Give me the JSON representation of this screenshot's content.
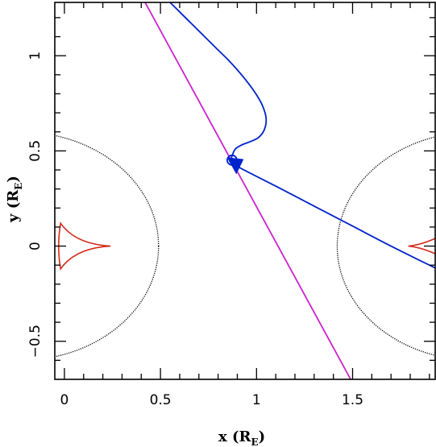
{
  "chart_data": {
    "type": "line",
    "title": "",
    "xlabel": {
      "main": "x (R",
      "sub": "E",
      "close": ")"
    },
    "ylabel": {
      "main": "y (R",
      "sub": "E",
      "close": ")"
    },
    "xlim": [
      -0.05,
      1.93
    ],
    "ylim": [
      -0.7,
      1.28
    ],
    "xticks": [
      0,
      0.5,
      1,
      1.5
    ],
    "xtick_labels": [
      "0",
      "0.5",
      "1",
      "1.5"
    ],
    "yticks": [
      -0.5,
      0,
      0.5,
      1
    ],
    "ytick_labels": [
      "−0.5",
      "0",
      "0.5",
      "1"
    ],
    "grid": false,
    "colors": {
      "critical_curve": "#000000",
      "caustic": "#d42a1a",
      "source_trajectory": "#cc22cc",
      "image_trajectory": "#0022cc"
    },
    "series": [
      {
        "role": "source-trajectory",
        "color": "#cc22cc",
        "points": [
          [
            0.42,
            1.28
          ],
          [
            1.49,
            -0.7
          ]
        ]
      },
      {
        "role": "image-trajectory",
        "color": "#0022cc",
        "points": [
          [
            0.55,
            1.28
          ],
          [
            0.6,
            1.23
          ],
          [
            0.66,
            1.17
          ],
          [
            0.72,
            1.11
          ],
          [
            0.79,
            1.04
          ],
          [
            0.86,
            0.97
          ],
          [
            0.93,
            0.89
          ],
          [
            0.99,
            0.81
          ],
          [
            1.03,
            0.74
          ],
          [
            1.05,
            0.67
          ],
          [
            1.04,
            0.61
          ],
          [
            1.01,
            0.57
          ],
          [
            0.97,
            0.55
          ],
          [
            0.92,
            0.53
          ],
          [
            0.89,
            0.51
          ],
          [
            0.875,
            0.48
          ],
          [
            0.87,
            0.46
          ],
          [
            0.88,
            0.43
          ],
          [
            1.1,
            0.315
          ],
          [
            1.3,
            0.21
          ],
          [
            1.5,
            0.105
          ],
          [
            1.7,
            0.0
          ],
          [
            1.93,
            -0.115
          ]
        ],
        "arrow_at": [
          0.88,
          0.43
        ],
        "loop_center": [
          0.86,
          0.46
        ]
      }
    ],
    "critical_curves": [
      {
        "role": "left-lens",
        "center_x": -0.23,
        "rx": 0.72,
        "ry": 0.6
      },
      {
        "role": "right-lens",
        "center_x": 2.14,
        "rx": 0.72,
        "ry": 0.6
      }
    ],
    "caustics": [
      {
        "role": "left-caustic",
        "cusp_right": [
          0.24,
          0.0
        ],
        "cusp_top": [
          -0.02,
          0.12
        ],
        "cusp_bottom": [
          -0.02,
          -0.12
        ]
      },
      {
        "role": "right-caustic",
        "cusp_left": [
          1.79,
          0.0
        ],
        "cusp_top": [
          1.93,
          0.04
        ],
        "cusp_bottom": [
          1.93,
          -0.04
        ]
      }
    ]
  }
}
